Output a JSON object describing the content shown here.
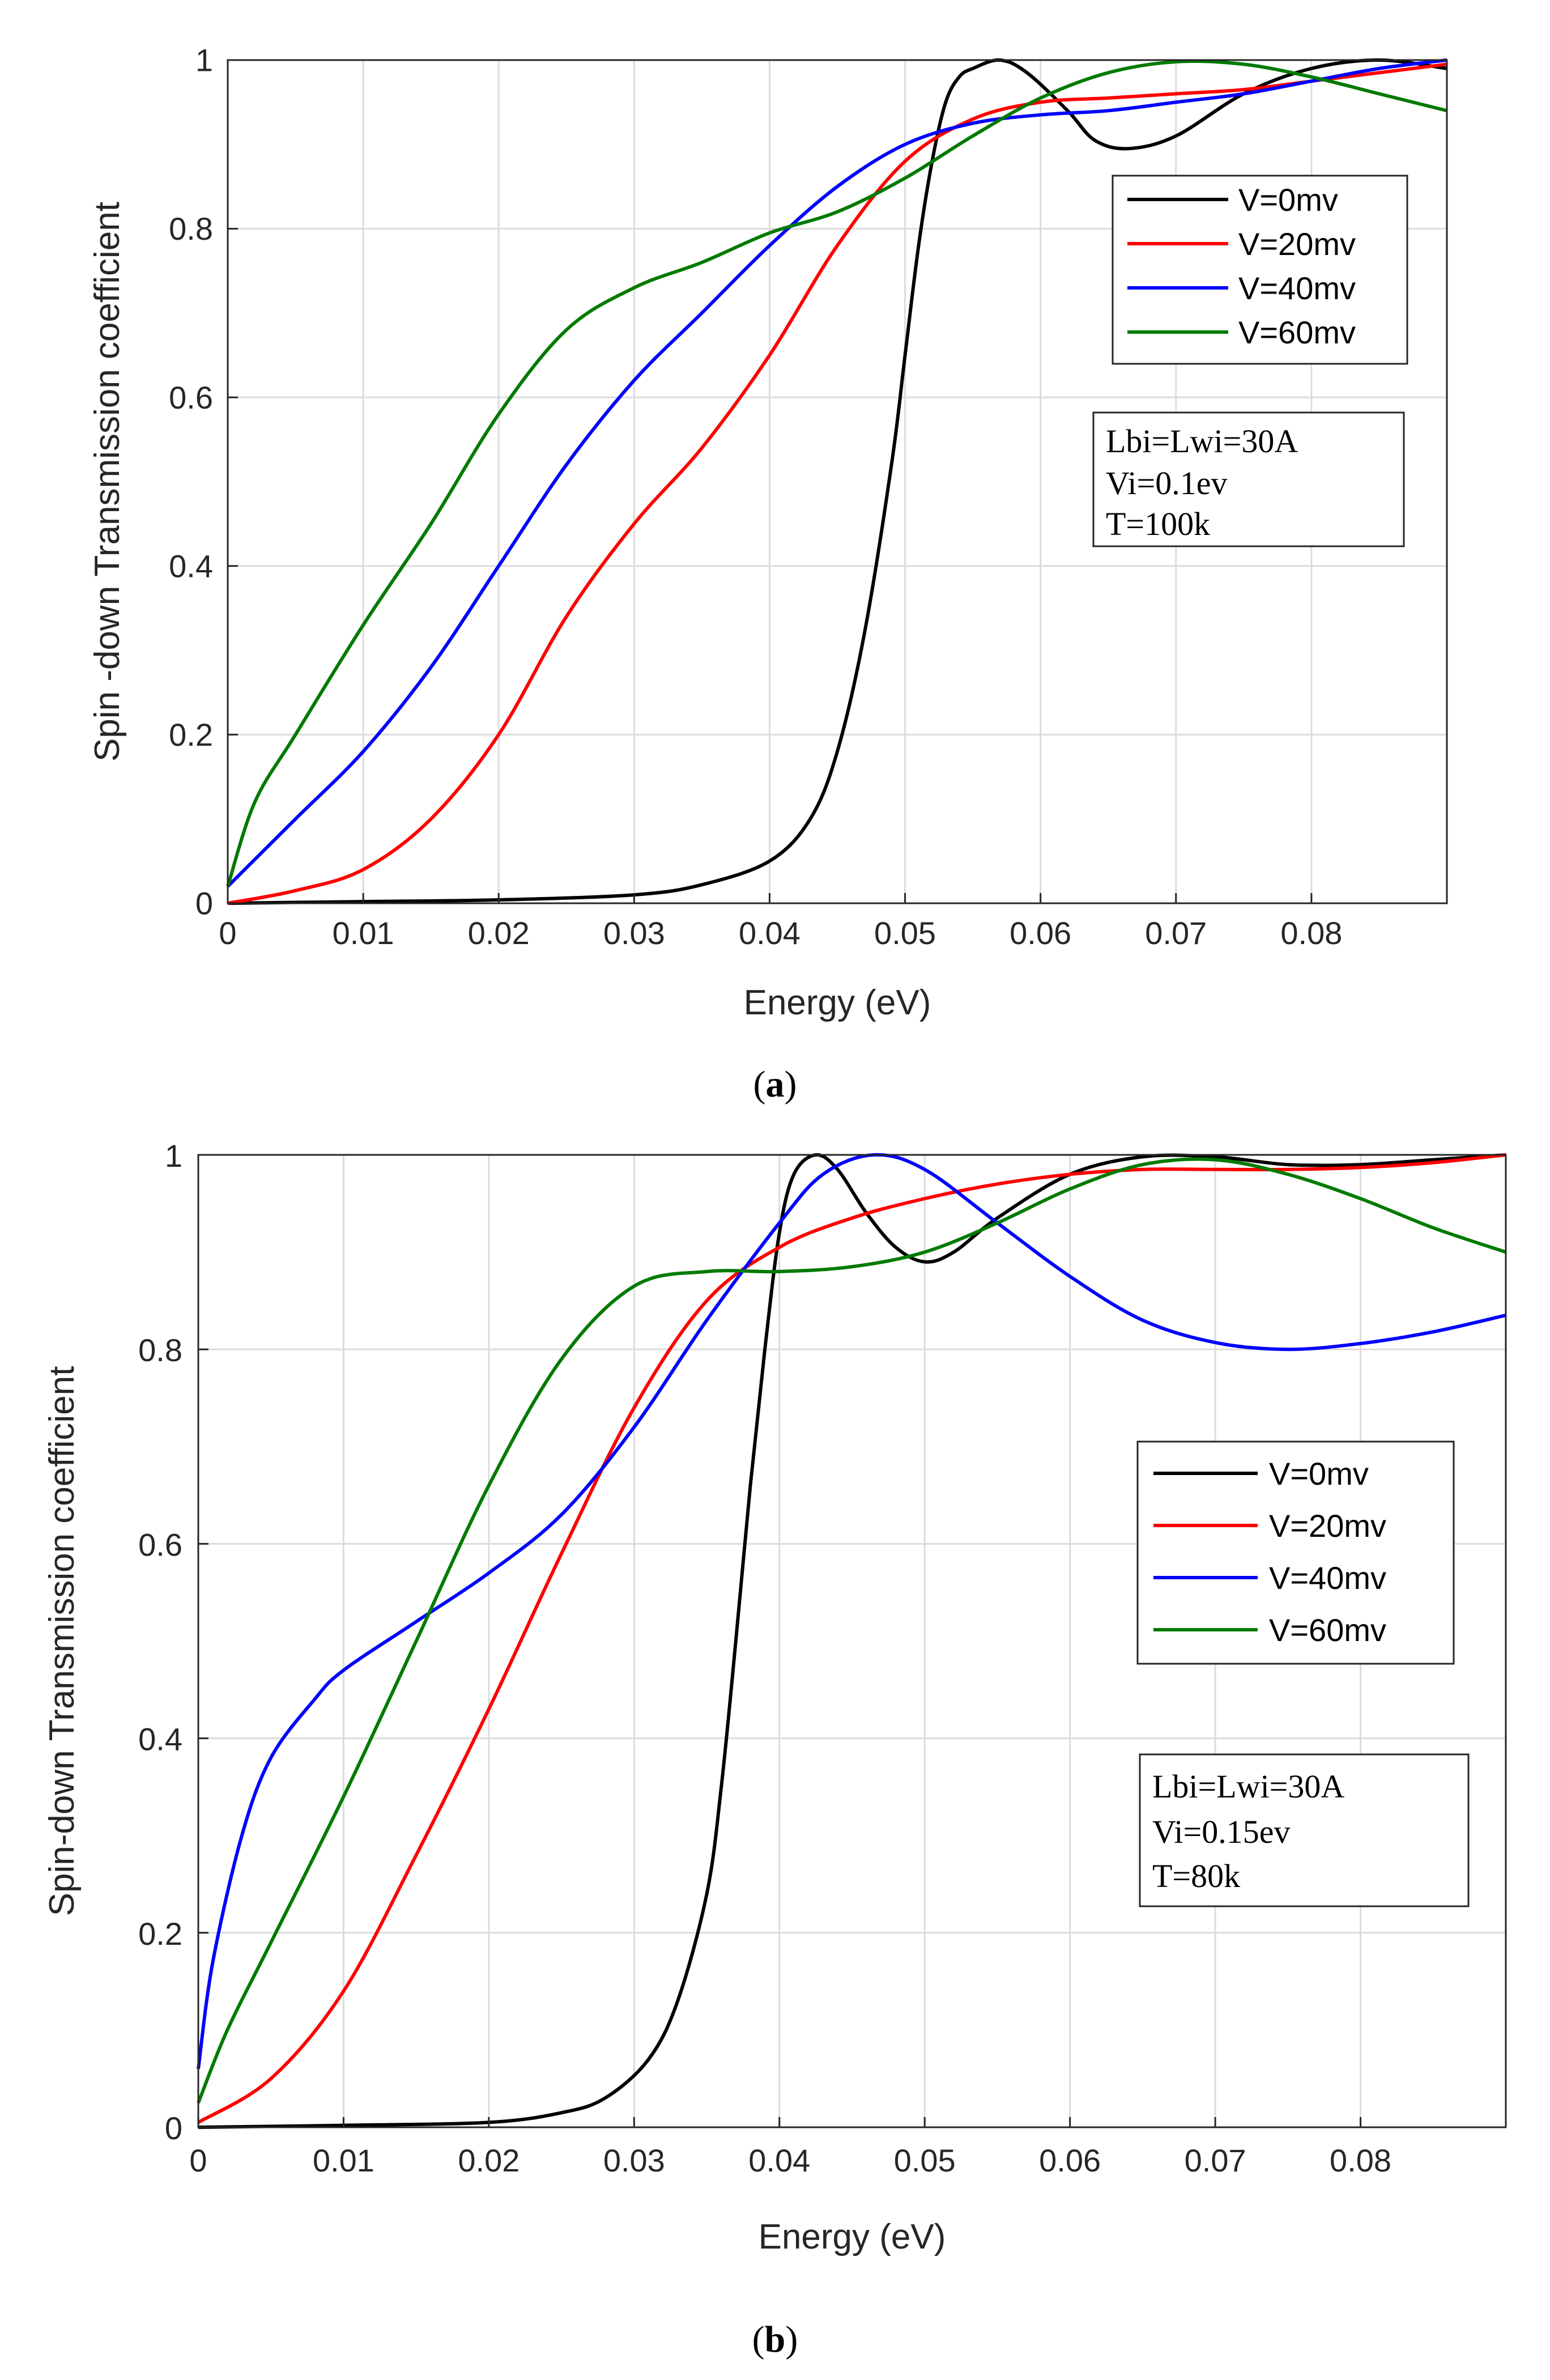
{
  "figure": {
    "caption_a": "a",
    "caption_b": "b"
  },
  "chart_data": [
    {
      "panel": "a",
      "type": "line",
      "title": "",
      "xlabel": "Energy (eV)",
      "ylabel": "Spin -down Transmission coefficient",
      "xlim": [
        0,
        0.09
      ],
      "ylim": [
        0,
        1
      ],
      "xticks": [
        "0",
        "0.01",
        "0.02",
        "0.03",
        "0.04",
        "0.05",
        "0.06",
        "0.07",
        "0.08"
      ],
      "yticks": [
        "0",
        "0.2",
        "0.4",
        "0.6",
        "0.8",
        "1"
      ],
      "grid": true,
      "legend_position": "top-right",
      "annotation": [
        "Lbi=Lwi=30A",
        "Vi=0.1ev",
        "T=100k"
      ],
      "series": [
        {
          "name": "V=0mv",
          "color": "#000000",
          "x": [
            0,
            0.01,
            0.02,
            0.03,
            0.035,
            0.04,
            0.043,
            0.045,
            0.047,
            0.049,
            0.05,
            0.051,
            0.052,
            0.053,
            0.054,
            0.055,
            0.057,
            0.059,
            0.062,
            0.064,
            0.0665,
            0.07,
            0.075,
            0.08,
            0.085,
            0.09
          ],
          "y": [
            0,
            0.002,
            0.004,
            0.01,
            0.022,
            0.05,
            0.1,
            0.18,
            0.32,
            0.52,
            0.65,
            0.78,
            0.88,
            0.95,
            0.98,
            0.99,
            1.0,
            0.985,
            0.94,
            0.905,
            0.895,
            0.91,
            0.96,
            0.99,
            1.0,
            0.99
          ]
        },
        {
          "name": "V=20mv",
          "color": "#ff0000",
          "x": [
            0,
            0.005,
            0.01,
            0.015,
            0.02,
            0.025,
            0.03,
            0.035,
            0.04,
            0.045,
            0.05,
            0.055,
            0.06,
            0.065,
            0.07,
            0.075,
            0.08,
            0.085,
            0.09
          ],
          "y": [
            0,
            0.015,
            0.04,
            0.1,
            0.2,
            0.34,
            0.45,
            0.54,
            0.65,
            0.78,
            0.88,
            0.93,
            0.95,
            0.955,
            0.96,
            0.965,
            0.975,
            0.985,
            0.995
          ]
        },
        {
          "name": "V=40mv",
          "color": "#0000ff",
          "x": [
            0,
            0.005,
            0.01,
            0.015,
            0.02,
            0.025,
            0.03,
            0.035,
            0.04,
            0.045,
            0.05,
            0.055,
            0.06,
            0.065,
            0.07,
            0.075,
            0.08,
            0.085,
            0.09
          ],
          "y": [
            0.02,
            0.1,
            0.18,
            0.28,
            0.4,
            0.52,
            0.62,
            0.7,
            0.78,
            0.85,
            0.9,
            0.925,
            0.935,
            0.94,
            0.95,
            0.96,
            0.975,
            0.99,
            1.0
          ]
        },
        {
          "name": "V=60mv",
          "color": "#007a00",
          "x": [
            0,
            0.002,
            0.005,
            0.01,
            0.015,
            0.02,
            0.025,
            0.03,
            0.035,
            0.04,
            0.045,
            0.05,
            0.055,
            0.06,
            0.065,
            0.07,
            0.075,
            0.08,
            0.085,
            0.09
          ],
          "y": [
            0.02,
            0.12,
            0.2,
            0.33,
            0.45,
            0.58,
            0.68,
            0.73,
            0.76,
            0.795,
            0.82,
            0.86,
            0.91,
            0.955,
            0.985,
            0.998,
            0.995,
            0.98,
            0.96,
            0.94
          ]
        }
      ]
    },
    {
      "panel": "b",
      "type": "line",
      "title": "",
      "xlabel": "Energy (eV)",
      "ylabel": "Spin-down Transmission coefficient",
      "xlim": [
        0,
        0.09
      ],
      "ylim": [
        0,
        1
      ],
      "xticks": [
        "0",
        "0.01",
        "0.02",
        "0.03",
        "0.04",
        "0.05",
        "0.06",
        "0.07",
        "0.08"
      ],
      "yticks": [
        "0",
        "0.2",
        "0.4",
        "0.6",
        "0.8",
        "1"
      ],
      "grid": true,
      "legend_position": "middle-right",
      "annotation": [
        "Lbi=Lwi=30A",
        "Vi=0.15ev",
        "T=80k"
      ],
      "series": [
        {
          "name": "V=0mv",
          "color": "#000000",
          "x": [
            0,
            0.01,
            0.02,
            0.025,
            0.028,
            0.031,
            0.033,
            0.035,
            0.036,
            0.037,
            0.038,
            0.039,
            0.04,
            0.041,
            0.0425,
            0.044,
            0.046,
            0.048,
            0.05,
            0.052,
            0.055,
            0.06,
            0.065,
            0.07,
            0.075,
            0.08,
            0.085,
            0.09
          ],
          "y": [
            0,
            0.002,
            0.005,
            0.015,
            0.03,
            0.07,
            0.13,
            0.24,
            0.35,
            0.5,
            0.66,
            0.8,
            0.92,
            0.98,
            1.0,
            0.985,
            0.94,
            0.905,
            0.89,
            0.9,
            0.935,
            0.98,
            0.998,
            0.998,
            0.99,
            0.99,
            0.995,
            1.0
          ]
        },
        {
          "name": "V=20mv",
          "color": "#ff0000",
          "x": [
            0,
            0.005,
            0.01,
            0.015,
            0.02,
            0.025,
            0.03,
            0.035,
            0.04,
            0.045,
            0.05,
            0.055,
            0.06,
            0.065,
            0.07,
            0.075,
            0.08,
            0.085,
            0.09
          ],
          "y": [
            0.005,
            0.05,
            0.14,
            0.28,
            0.43,
            0.59,
            0.74,
            0.85,
            0.905,
            0.935,
            0.955,
            0.97,
            0.98,
            0.985,
            0.985,
            0.985,
            0.987,
            0.992,
            1.0
          ]
        },
        {
          "name": "V=40mv",
          "color": "#0000ff",
          "x": [
            0,
            0.001,
            0.003,
            0.005,
            0.008,
            0.01,
            0.015,
            0.02,
            0.025,
            0.03,
            0.035,
            0.04,
            0.043,
            0.0465,
            0.05,
            0.055,
            0.06,
            0.065,
            0.07,
            0.075,
            0.08,
            0.085,
            0.09
          ],
          "y": [
            0.06,
            0.17,
            0.3,
            0.38,
            0.44,
            0.47,
            0.52,
            0.57,
            0.63,
            0.72,
            0.83,
            0.93,
            0.98,
            1.0,
            0.985,
            0.93,
            0.875,
            0.83,
            0.807,
            0.8,
            0.806,
            0.818,
            0.835
          ]
        },
        {
          "name": "V=60mv",
          "color": "#007a00",
          "x": [
            0,
            0.002,
            0.005,
            0.01,
            0.015,
            0.02,
            0.025,
            0.03,
            0.035,
            0.04,
            0.045,
            0.05,
            0.055,
            0.06,
            0.065,
            0.07,
            0.075,
            0.08,
            0.085,
            0.09
          ],
          "y": [
            0.025,
            0.1,
            0.19,
            0.34,
            0.5,
            0.66,
            0.79,
            0.865,
            0.88,
            0.88,
            0.885,
            0.9,
            0.93,
            0.965,
            0.99,
            0.995,
            0.98,
            0.955,
            0.925,
            0.9
          ]
        }
      ]
    }
  ]
}
